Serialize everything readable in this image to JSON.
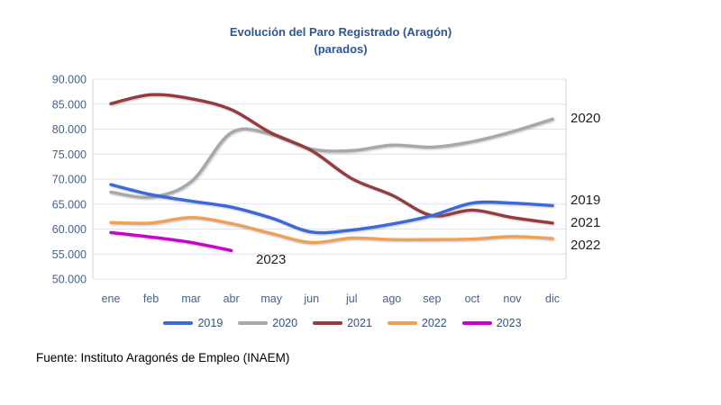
{
  "chart": {
    "title": "Evolución del Paro Registrado (Aragón)",
    "subtitle": "(parados)"
  },
  "source": "Fuente: Instituto Aragonés de Empleo (INAEM)",
  "chart_data": {
    "type": "line",
    "title": "Evolución del Paro Registrado (Aragón)",
    "subtitle": "(parados)",
    "categories": [
      "ene",
      "feb",
      "mar",
      "abr",
      "may",
      "jun",
      "jul",
      "ago",
      "sep",
      "oct",
      "nov",
      "dic"
    ],
    "y_tick_labels": [
      "90.000",
      "85.000",
      "80.000",
      "75.000",
      "70.000",
      "65.000",
      "60.000",
      "55.000",
      "50.000"
    ],
    "ylim": [
      50000,
      90000
    ],
    "y_step": 5000,
    "grid": "horizontal",
    "smoothed_lines": true,
    "legend_position": "bottom",
    "series": [
      {
        "name": "2019",
        "color": "#3D68D8",
        "values": [
          68900,
          66900,
          65600,
          64400,
          62200,
          59400,
          59800,
          61000,
          62700,
          65200,
          65200,
          64700
        ]
      },
      {
        "name": "2020",
        "color": "#A8A8A8",
        "values": [
          67400,
          66400,
          69500,
          79300,
          79000,
          76000,
          75700,
          76800,
          76400,
          77500,
          79500,
          82000
        ]
      },
      {
        "name": "2021",
        "color": "#963B3B",
        "values": [
          85100,
          86900,
          86100,
          83900,
          79200,
          75700,
          70100,
          66800,
          62700,
          63800,
          62300,
          61200
        ]
      },
      {
        "name": "2022",
        "color": "#EFA055",
        "values": [
          61300,
          61200,
          62300,
          61100,
          59100,
          57300,
          58200,
          57900,
          57900,
          58000,
          58500,
          58100
        ]
      },
      {
        "name": "2023",
        "color": "#CC00CC",
        "values": [
          59300,
          58400,
          57300,
          55700
        ]
      }
    ],
    "annotations": [
      "2020",
      "2019",
      "2021",
      "2022",
      "2023"
    ]
  }
}
